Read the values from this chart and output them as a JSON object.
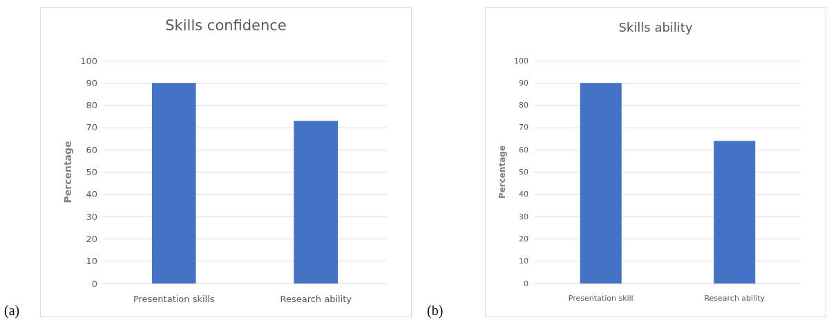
{
  "chart_data": [
    {
      "type": "bar",
      "title": "Skills confidence",
      "ylabel": "Percentage",
      "categories": [
        "Presentation skills",
        "Research ability"
      ],
      "values": [
        90,
        73
      ],
      "color": "#4472c4",
      "ylim": [
        0,
        100
      ],
      "yticks": [
        0,
        10,
        20,
        30,
        40,
        50,
        60,
        70,
        80,
        90,
        100
      ],
      "grid": "y",
      "annotations": [
        "(a)"
      ]
    },
    {
      "type": "bar",
      "title": "Skills ability",
      "ylabel": "Percentage",
      "categories": [
        "Presentation skill",
        "Research ability"
      ],
      "values": [
        90,
        64
      ],
      "color": "#4472c4",
      "ylim": [
        0,
        100
      ],
      "yticks": [
        0,
        10,
        20,
        30,
        40,
        50,
        60,
        70,
        80,
        90,
        100
      ],
      "grid": "y",
      "annotations": [
        "(b)"
      ]
    }
  ]
}
